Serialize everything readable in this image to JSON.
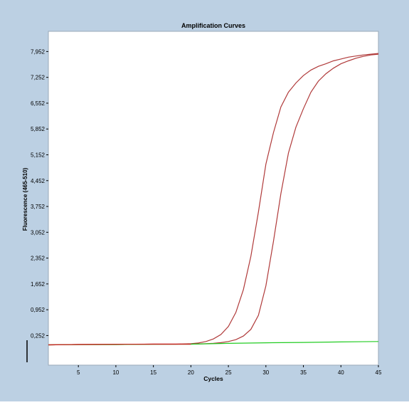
{
  "colors": {
    "frame_bg": "#bcd0e3",
    "plot_bg": "#ffffff",
    "sample_curve": "#b03a3a",
    "baseline_green": "#22cc22",
    "baseline_red": "#cc2222"
  },
  "chart_data": {
    "type": "line",
    "title": "Amplification Curves",
    "xlabel": "Cycles",
    "ylabel": "Fluorescence (465-510)",
    "xlim": [
      1,
      45
    ],
    "ylim": [
      -0.55,
      8.5
    ],
    "xticks": [
      5,
      10,
      15,
      20,
      25,
      30,
      35,
      40,
      45
    ],
    "yticks": [
      0.252,
      0.952,
      1.652,
      2.352,
      3.052,
      3.752,
      4.452,
      5.152,
      5.852,
      6.552,
      7.252,
      7.952
    ],
    "ytick_labels": [
      "0,252",
      "0,952",
      "1,652",
      "2,352",
      "3,052",
      "3,752",
      "4,452",
      "5,152",
      "5,852",
      "6,552",
      "7,252",
      "7,952"
    ],
    "grid": false,
    "legend": "none",
    "series": [
      {
        "color": "#b03a3a",
        "x": [
          1,
          5,
          10,
          15,
          18,
          20,
          21,
          22,
          23,
          24,
          25,
          26,
          27,
          28,
          29,
          30,
          31,
          32,
          33,
          34,
          35,
          36,
          37,
          38,
          39,
          40,
          41,
          42,
          43,
          44,
          45
        ],
        "y": [
          0.0,
          0.01,
          0.01,
          0.02,
          0.02,
          0.03,
          0.05,
          0.09,
          0.16,
          0.28,
          0.5,
          0.88,
          1.5,
          2.4,
          3.6,
          4.9,
          5.75,
          6.45,
          6.85,
          7.1,
          7.3,
          7.45,
          7.55,
          7.62,
          7.7,
          7.75,
          7.8,
          7.83,
          7.86,
          7.88,
          7.9
        ]
      },
      {
        "color": "#b03a3a",
        "x": [
          1,
          5,
          10,
          15,
          20,
          22,
          23,
          24,
          25,
          26,
          27,
          28,
          29,
          30,
          31,
          32,
          33,
          34,
          35,
          36,
          37,
          38,
          39,
          40,
          41,
          42,
          43,
          44,
          45
        ],
        "y": [
          0.0,
          0.01,
          0.01,
          0.02,
          0.02,
          0.03,
          0.04,
          0.06,
          0.09,
          0.14,
          0.24,
          0.42,
          0.8,
          1.6,
          2.8,
          4.1,
          5.2,
          5.9,
          6.4,
          6.85,
          7.15,
          7.35,
          7.5,
          7.62,
          7.7,
          7.77,
          7.82,
          7.86,
          7.88
        ]
      },
      {
        "color": "#22cc22",
        "x": [
          1,
          5,
          10,
          15,
          20,
          25,
          30,
          35,
          40,
          45
        ],
        "y": [
          0.0,
          0.005,
          0.01,
          0.015,
          0.02,
          0.04,
          0.055,
          0.065,
          0.08,
          0.09
        ]
      },
      {
        "color": "#cc2222",
        "x": [
          1,
          5,
          10,
          15,
          20
        ],
        "y": [
          0.0,
          0.01,
          0.015,
          0.02,
          0.02
        ]
      }
    ]
  }
}
